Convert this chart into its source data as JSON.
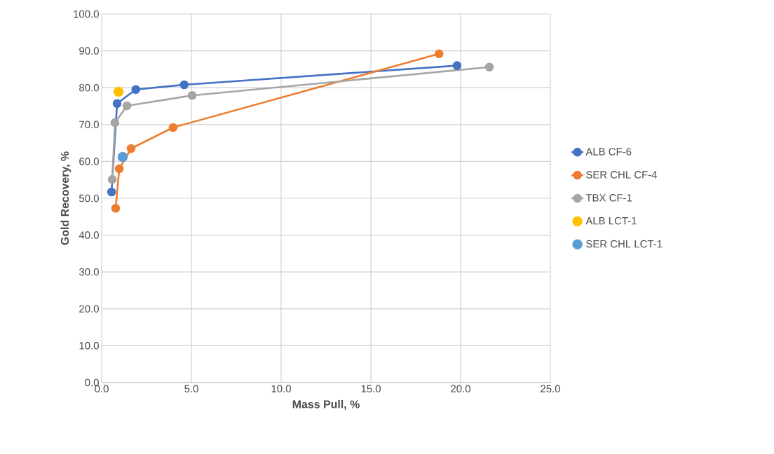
{
  "chart_data": {
    "type": "line",
    "xlabel": "Mass Pull, %",
    "ylabel": "Gold Recovery, %",
    "xlim": [
      0,
      25
    ],
    "xticks": [
      {
        "value": 0,
        "label": "0.0"
      },
      {
        "value": 5,
        "label": "5.0"
      },
      {
        "value": 10,
        "label": "10.0"
      },
      {
        "value": 15,
        "label": "15.0"
      },
      {
        "value": 20,
        "label": "20.0"
      },
      {
        "value": 25,
        "label": "25.0"
      }
    ],
    "ylim": [
      0,
      100
    ],
    "yticks": [
      {
        "value": 0,
        "label": "0.0"
      },
      {
        "value": 10,
        "label": "10.0"
      },
      {
        "value": 20,
        "label": "20.0"
      },
      {
        "value": 30,
        "label": "30.0"
      },
      {
        "value": 40,
        "label": "40.0"
      },
      {
        "value": 50,
        "label": "50.0"
      },
      {
        "value": 60,
        "label": "60.0"
      },
      {
        "value": 70,
        "label": "70.0"
      },
      {
        "value": 80,
        "label": "80.0"
      },
      {
        "value": 90,
        "label": "90.0"
      },
      {
        "value": 100,
        "label": "100.0"
      }
    ],
    "grid": true,
    "legend": "right",
    "marker": "circle",
    "series": [
      {
        "name": "ALB CF-6",
        "color": "#4472c4",
        "x": [
          0.55,
          0.86,
          1.9,
          4.6,
          19.8
        ],
        "values": [
          51.7,
          75.7,
          79.5,
          80.8,
          86.0
        ]
      },
      {
        "name": "SER CHL CF-4",
        "color": "#ed7d31",
        "x": [
          0.78,
          0.98,
          1.64,
          3.98,
          18.8
        ],
        "values": [
          47.3,
          58.0,
          63.5,
          69.2,
          89.2
        ]
      },
      {
        "name": "TBX CF-1",
        "color": "#a5a5a5",
        "x": [
          0.59,
          0.74,
          1.41,
          5.04,
          21.6
        ],
        "values": [
          55.1,
          70.5,
          75.1,
          77.9,
          85.6
        ]
      },
      {
        "name": "ALB LCT-1",
        "type": "scatter",
        "color": "#ffc000",
        "x": [
          0.94
        ],
        "values": [
          78.9
        ]
      },
      {
        "name": "SER CHL LCT-1",
        "type": "scatter",
        "color": "#5b9bd5",
        "x": [
          1.17
        ],
        "values": [
          61.2
        ]
      }
    ]
  }
}
